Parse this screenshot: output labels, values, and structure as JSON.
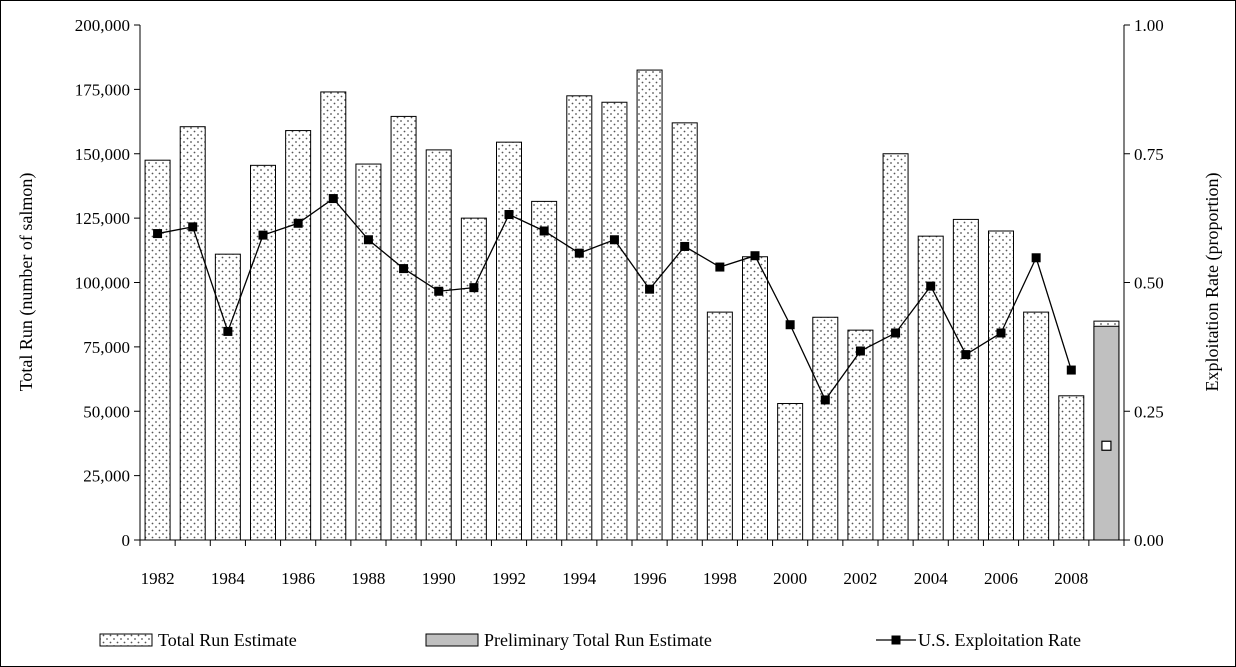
{
  "chart_data": {
    "type": "bar",
    "categories": [
      "1982",
      "1983",
      "1984",
      "1985",
      "1986",
      "1987",
      "1988",
      "1989",
      "1990",
      "1991",
      "1992",
      "1993",
      "1994",
      "1995",
      "1996",
      "1997",
      "1998",
      "1999",
      "2000",
      "2001",
      "2002",
      "2003",
      "2004",
      "2005",
      "2006",
      "2007",
      "2008",
      "2009"
    ],
    "x_tick_labels": [
      "1982",
      "1984",
      "1986",
      "1988",
      "1990",
      "1992",
      "1994",
      "1996",
      "1998",
      "2000",
      "2002",
      "2004",
      "2006",
      "2008"
    ],
    "series": [
      {
        "name": "Total Run Estimate",
        "type": "bar",
        "axis": "left",
        "pattern": "dotted",
        "values": [
          147500,
          160500,
          111000,
          145500,
          159000,
          174000,
          146000,
          164500,
          151500,
          125000,
          154500,
          131500,
          172500,
          170000,
          182500,
          162000,
          88500,
          110000,
          53000,
          86500,
          81500,
          150000,
          118000,
          124500,
          120000,
          88500,
          56000,
          85000
        ]
      },
      {
        "name": "Preliminary Total Run Estimate",
        "type": "bar",
        "axis": "left",
        "color": "#c0c0c0",
        "values": [
          null,
          null,
          null,
          null,
          null,
          null,
          null,
          null,
          null,
          null,
          null,
          null,
          null,
          null,
          null,
          null,
          null,
          null,
          null,
          null,
          null,
          null,
          null,
          null,
          null,
          null,
          null,
          83000
        ]
      },
      {
        "name": "U.S. Exploitation Rate",
        "type": "line",
        "axis": "right",
        "color": "#000000",
        "values": [
          0.595,
          0.608,
          0.405,
          0.592,
          0.615,
          0.663,
          0.583,
          0.527,
          0.483,
          0.49,
          0.632,
          0.6,
          0.557,
          0.583,
          0.487,
          0.57,
          0.53,
          0.552,
          0.418,
          0.272,
          0.367,
          0.402,
          0.493,
          0.36,
          0.402,
          0.548,
          0.33,
          null
        ],
        "preliminary_value": 0.183
      }
    ],
    "ylabel": "Total Run (number of salmon)",
    "y2label": "Exploitation Rate (proportion)",
    "ylim": [
      0,
      200000
    ],
    "y_ticks": [
      "0",
      "25,000",
      "50,000",
      "75,000",
      "100,000",
      "125,000",
      "150,000",
      "175,000",
      "200,000"
    ],
    "y2lim": [
      0,
      1
    ],
    "y2_ticks": [
      "0.00",
      "0.25",
      "0.50",
      "0.75",
      "1.00"
    ],
    "grid": false,
    "legend_position": "bottom",
    "legend": [
      "Total Run Estimate",
      "Preliminary Total Run Estimate",
      "U.S. Exploitation Rate"
    ]
  }
}
